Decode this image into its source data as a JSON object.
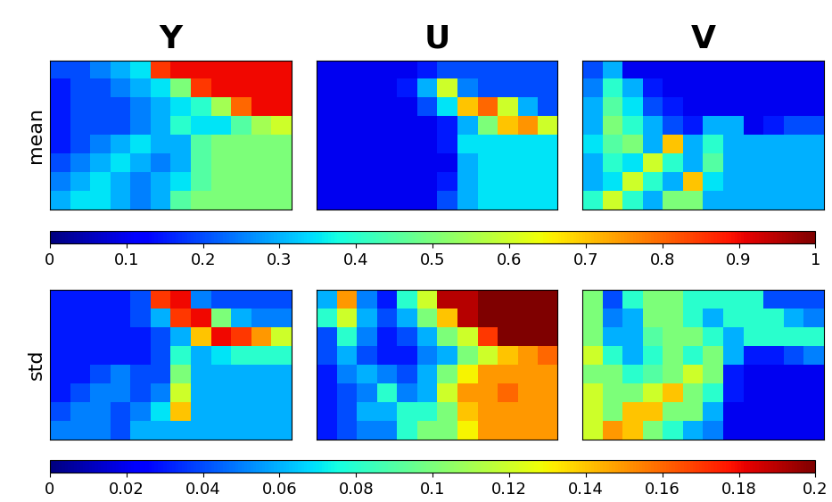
{
  "chart_data": {
    "type": "heatmap",
    "color": "jet",
    "tick_labels": false,
    "columns": [
      "Y",
      "U",
      "V"
    ],
    "rows": [
      {
        "label": "mean",
        "colorbar": {
          "range": [
            0,
            1
          ],
          "ticks": [
            0,
            0.1,
            0.2,
            0.3,
            0.4,
            0.5,
            0.6,
            0.7,
            0.8,
            0.9,
            1
          ]
        },
        "cells": [
          [
            [
              0.2,
              0.2,
              0.25,
              0.3,
              0.35,
              0.85,
              0.9,
              0.9,
              0.9,
              0.9,
              0.9,
              0.9
            ],
            [
              0.15,
              0.2,
              0.2,
              0.25,
              0.3,
              0.35,
              0.5,
              0.85,
              0.9,
              0.9,
              0.9,
              0.9
            ],
            [
              0.15,
              0.2,
              0.2,
              0.2,
              0.25,
              0.3,
              0.35,
              0.4,
              0.55,
              0.8,
              0.9,
              0.9
            ],
            [
              0.15,
              0.2,
              0.2,
              0.2,
              0.25,
              0.3,
              0.4,
              0.35,
              0.35,
              0.45,
              0.55,
              0.6
            ],
            [
              0.15,
              0.2,
              0.25,
              0.3,
              0.35,
              0.3,
              0.3,
              0.45,
              0.5,
              0.5,
              0.5,
              0.5
            ],
            [
              0.2,
              0.25,
              0.3,
              0.35,
              0.3,
              0.25,
              0.3,
              0.45,
              0.5,
              0.5,
              0.5,
              0.5
            ],
            [
              0.25,
              0.3,
              0.35,
              0.3,
              0.25,
              0.3,
              0.35,
              0.45,
              0.5,
              0.5,
              0.5,
              0.5
            ],
            [
              0.3,
              0.35,
              0.35,
              0.3,
              0.25,
              0.3,
              0.45,
              0.5,
              0.5,
              0.5,
              0.5,
              0.5
            ]
          ],
          [
            [
              0.1,
              0.1,
              0.1,
              0.1,
              0.1,
              0.15,
              0.2,
              0.2,
              0.2,
              0.2,
              0.2,
              0.2
            ],
            [
              0.1,
              0.1,
              0.1,
              0.1,
              0.15,
              0.3,
              0.6,
              0.25,
              0.2,
              0.2,
              0.2,
              0.2
            ],
            [
              0.1,
              0.1,
              0.1,
              0.1,
              0.1,
              0.2,
              0.35,
              0.7,
              0.8,
              0.6,
              0.3,
              0.2
            ],
            [
              0.1,
              0.1,
              0.1,
              0.1,
              0.1,
              0.1,
              0.15,
              0.3,
              0.5,
              0.7,
              0.75,
              0.6
            ],
            [
              0.1,
              0.1,
              0.1,
              0.1,
              0.1,
              0.1,
              0.15,
              0.35,
              0.35,
              0.35,
              0.35,
              0.35
            ],
            [
              0.1,
              0.1,
              0.1,
              0.1,
              0.1,
              0.1,
              0.1,
              0.3,
              0.35,
              0.35,
              0.35,
              0.35
            ],
            [
              0.1,
              0.1,
              0.1,
              0.1,
              0.1,
              0.1,
              0.15,
              0.3,
              0.35,
              0.35,
              0.35,
              0.35
            ],
            [
              0.1,
              0.1,
              0.1,
              0.1,
              0.1,
              0.1,
              0.2,
              0.3,
              0.35,
              0.35,
              0.35,
              0.35
            ]
          ],
          [
            [
              0.2,
              0.3,
              0.1,
              0.1,
              0.1,
              0.1,
              0.1,
              0.1,
              0.1,
              0.1,
              0.1,
              0.1
            ],
            [
              0.25,
              0.4,
              0.3,
              0.15,
              0.1,
              0.1,
              0.1,
              0.1,
              0.1,
              0.1,
              0.1,
              0.1
            ],
            [
              0.3,
              0.45,
              0.35,
              0.2,
              0.15,
              0.1,
              0.1,
              0.1,
              0.1,
              0.1,
              0.1,
              0.1
            ],
            [
              0.3,
              0.5,
              0.4,
              0.3,
              0.2,
              0.15,
              0.3,
              0.3,
              0.1,
              0.15,
              0.2,
              0.2
            ],
            [
              0.35,
              0.45,
              0.5,
              0.3,
              0.7,
              0.3,
              0.4,
              0.3,
              0.3,
              0.3,
              0.3,
              0.3
            ],
            [
              0.3,
              0.4,
              0.35,
              0.6,
              0.4,
              0.3,
              0.45,
              0.3,
              0.3,
              0.3,
              0.3,
              0.3
            ],
            [
              0.3,
              0.35,
              0.6,
              0.4,
              0.3,
              0.7,
              0.35,
              0.3,
              0.3,
              0.3,
              0.3,
              0.3
            ],
            [
              0.4,
              0.6,
              0.4,
              0.3,
              0.5,
              0.5,
              0.3,
              0.3,
              0.3,
              0.3,
              0.3,
              0.3
            ]
          ]
        ]
      },
      {
        "label": "std",
        "colorbar": {
          "range": [
            0,
            0.2
          ],
          "ticks": [
            0,
            0.02,
            0.04,
            0.06,
            0.08,
            0.1,
            0.12,
            0.14,
            0.16,
            0.18,
            0.2
          ]
        },
        "cells": [
          [
            [
              0.03,
              0.03,
              0.03,
              0.03,
              0.04,
              0.17,
              0.18,
              0.05,
              0.04,
              0.04,
              0.04,
              0.04
            ],
            [
              0.03,
              0.03,
              0.03,
              0.03,
              0.04,
              0.06,
              0.17,
              0.18,
              0.1,
              0.06,
              0.05,
              0.05
            ],
            [
              0.03,
              0.03,
              0.03,
              0.03,
              0.03,
              0.04,
              0.06,
              0.14,
              0.18,
              0.17,
              0.15,
              0.12
            ],
            [
              0.03,
              0.03,
              0.03,
              0.03,
              0.03,
              0.04,
              0.08,
              0.06,
              0.07,
              0.08,
              0.08,
              0.08
            ],
            [
              0.03,
              0.03,
              0.04,
              0.05,
              0.04,
              0.04,
              0.1,
              0.06,
              0.06,
              0.06,
              0.06,
              0.06
            ],
            [
              0.03,
              0.04,
              0.05,
              0.05,
              0.04,
              0.05,
              0.12,
              0.06,
              0.06,
              0.06,
              0.06,
              0.06
            ],
            [
              0.04,
              0.05,
              0.05,
              0.04,
              0.05,
              0.07,
              0.14,
              0.06,
              0.06,
              0.06,
              0.06,
              0.06
            ],
            [
              0.05,
              0.05,
              0.05,
              0.04,
              0.06,
              0.06,
              0.06,
              0.06,
              0.06,
              0.06,
              0.06,
              0.06
            ]
          ],
          [
            [
              0.06,
              0.15,
              0.05,
              0.03,
              0.08,
              0.12,
              0.19,
              0.19,
              0.2,
              0.2,
              0.2,
              0.2
            ],
            [
              0.08,
              0.12,
              0.06,
              0.04,
              0.06,
              0.1,
              0.14,
              0.19,
              0.2,
              0.2,
              0.2,
              0.2
            ],
            [
              0.04,
              0.08,
              0.05,
              0.03,
              0.04,
              0.06,
              0.1,
              0.12,
              0.17,
              0.2,
              0.2,
              0.2
            ],
            [
              0.04,
              0.06,
              0.04,
              0.03,
              0.03,
              0.05,
              0.06,
              0.1,
              0.12,
              0.14,
              0.15,
              0.16
            ],
            [
              0.03,
              0.05,
              0.06,
              0.05,
              0.04,
              0.06,
              0.1,
              0.13,
              0.15,
              0.15,
              0.15,
              0.15
            ],
            [
              0.03,
              0.04,
              0.05,
              0.08,
              0.05,
              0.06,
              0.12,
              0.15,
              0.15,
              0.16,
              0.15,
              0.15
            ],
            [
              0.03,
              0.04,
              0.06,
              0.06,
              0.08,
              0.08,
              0.1,
              0.14,
              0.15,
              0.15,
              0.15,
              0.15
            ],
            [
              0.03,
              0.04,
              0.05,
              0.05,
              0.08,
              0.1,
              0.1,
              0.13,
              0.15,
              0.15,
              0.15,
              0.15
            ]
          ],
          [
            [
              0.1,
              0.04,
              0.08,
              0.1,
              0.1,
              0.08,
              0.08,
              0.08,
              0.08,
              0.04,
              0.04,
              0.04
            ],
            [
              0.1,
              0.05,
              0.06,
              0.1,
              0.1,
              0.08,
              0.06,
              0.08,
              0.08,
              0.08,
              0.06,
              0.05
            ],
            [
              0.1,
              0.06,
              0.06,
              0.09,
              0.1,
              0.1,
              0.08,
              0.06,
              0.08,
              0.08,
              0.08,
              0.08
            ],
            [
              0.12,
              0.08,
              0.06,
              0.08,
              0.1,
              0.08,
              0.1,
              0.06,
              0.03,
              0.03,
              0.04,
              0.05
            ],
            [
              0.1,
              0.1,
              0.08,
              0.09,
              0.1,
              0.12,
              0.1,
              0.03,
              0.02,
              0.02,
              0.02,
              0.02
            ],
            [
              0.12,
              0.1,
              0.1,
              0.12,
              0.14,
              0.1,
              0.08,
              0.03,
              0.02,
              0.02,
              0.02,
              0.02
            ],
            [
              0.12,
              0.1,
              0.14,
              0.14,
              0.1,
              0.1,
              0.06,
              0.02,
              0.02,
              0.02,
              0.02,
              0.02
            ],
            [
              0.12,
              0.15,
              0.14,
              0.1,
              0.08,
              0.06,
              0.05,
              0.02,
              0.02,
              0.02,
              0.02,
              0.02
            ]
          ]
        ]
      }
    ]
  }
}
